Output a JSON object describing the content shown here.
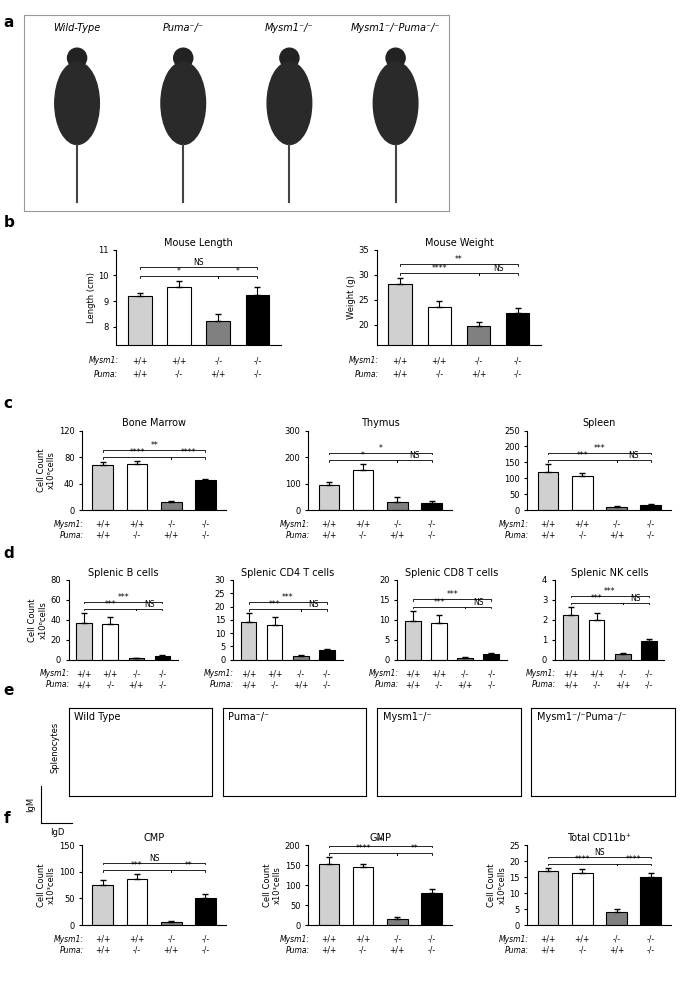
{
  "photo_panel": {
    "panel": "a",
    "labels": [
      "Wild-Type",
      "Puma⁻/⁻",
      "Mysm1⁻/⁻",
      "Mysm1⁻/⁻Puma⁻/⁻"
    ]
  },
  "flow_panel": {
    "panel": "e",
    "titles": [
      "Wild Type",
      "Puma⁻/⁻",
      "Mysm1⁻/⁻",
      "Mysm1⁻/⁻Puma⁻/⁻"
    ],
    "row_label": "Splenocytes",
    "y_label": "IgM",
    "x_label": "IgD"
  },
  "genotype_table": [
    {
      "gene": "Mysm1:",
      "alleles": [
        "+/+",
        "+/+",
        "-/-",
        "-/-"
      ]
    },
    {
      "gene": "Puma:",
      "alleles": [
        "+/+",
        "-/-",
        "+/+",
        "-/-"
      ]
    }
  ],
  "chart_data": [
    {
      "group": "b",
      "type": "bar",
      "title": "Mouse Length",
      "y_label": "Length (cm)",
      "categories": [
        null,
        null,
        null,
        null
      ],
      "values": [
        9.2,
        9.55,
        8.25,
        9.25
      ],
      "errors": [
        0.1,
        0.25,
        0.25,
        0.3
      ],
      "colors": [
        "#d0d0d0",
        "#ffffff",
        "#808080",
        "#000000"
      ],
      "ylim": [
        7.3,
        11
      ],
      "yticks": [
        8,
        9,
        10,
        11
      ],
      "significance": [
        {
          "between": [
            0,
            3
          ],
          "label": "NS"
        },
        {
          "between": [
            0,
            2
          ],
          "label": "*"
        },
        {
          "between": [
            2,
            3
          ],
          "label": "*"
        }
      ]
    },
    {
      "group": "b",
      "type": "bar",
      "title": "Mouse Weight",
      "y_label": "Weight (g)",
      "categories": [
        null,
        null,
        null,
        null
      ],
      "values": [
        28.2,
        23.5,
        19.8,
        22.3
      ],
      "errors": [
        1.2,
        1.3,
        0.8,
        1.1
      ],
      "colors": [
        "#d0d0d0",
        "#ffffff",
        "#808080",
        "#000000"
      ],
      "ylim": [
        16,
        35
      ],
      "yticks": [
        20,
        25,
        30,
        35
      ],
      "significance": [
        {
          "between": [
            0,
            3
          ],
          "label": "**"
        },
        {
          "between": [
            0,
            2
          ],
          "label": "****"
        },
        {
          "between": [
            2,
            3
          ],
          "label": "NS"
        }
      ]
    },
    {
      "group": "c",
      "type": "bar",
      "title": "Bone Marrow",
      "y_label": "Cell Count\nx10⁶cells",
      "categories": [
        null,
        null,
        null,
        null
      ],
      "values": [
        68,
        69,
        12,
        45
      ],
      "errors": [
        4,
        5,
        2,
        2
      ],
      "colors": [
        "#d0d0d0",
        "#ffffff",
        "#808080",
        "#000000"
      ],
      "ylim": [
        0,
        120
      ],
      "yticks": [
        0,
        40,
        80,
        120
      ],
      "significance": [
        {
          "between": [
            0,
            3
          ],
          "label": "**"
        },
        {
          "between": [
            0,
            2
          ],
          "label": "****"
        },
        {
          "between": [
            2,
            3
          ],
          "label": "****"
        }
      ]
    },
    {
      "group": "c",
      "type": "bar",
      "title": "Thymus",
      "categories": [
        null,
        null,
        null,
        null
      ],
      "values": [
        95,
        152,
        32,
        26
      ],
      "errors": [
        12,
        22,
        18,
        8
      ],
      "colors": [
        "#d0d0d0",
        "#ffffff",
        "#808080",
        "#000000"
      ],
      "ylim": [
        0,
        300
      ],
      "yticks": [
        0,
        100,
        200,
        300
      ],
      "significance": [
        {
          "between": [
            0,
            3
          ],
          "label": "*"
        },
        {
          "between": [
            0,
            2
          ],
          "label": "*"
        },
        {
          "between": [
            2,
            3
          ],
          "label": "NS"
        }
      ]
    },
    {
      "group": "c",
      "type": "bar",
      "title": "Spleen",
      "categories": [
        null,
        null,
        null,
        null
      ],
      "values": [
        120,
        108,
        10,
        17
      ],
      "errors": [
        25,
        10,
        4,
        3
      ],
      "colors": [
        "#d0d0d0",
        "#ffffff",
        "#808080",
        "#000000"
      ],
      "ylim": [
        0,
        250
      ],
      "yticks": [
        0,
        50,
        100,
        150,
        200,
        250
      ],
      "significance": [
        {
          "between": [
            0,
            3
          ],
          "label": "***"
        },
        {
          "between": [
            0,
            2
          ],
          "label": "***"
        },
        {
          "between": [
            2,
            3
          ],
          "label": "NS"
        }
      ]
    },
    {
      "group": "d",
      "type": "bar",
      "title": "Splenic B cells",
      "y_label": "Cell Count\nx10⁶cells",
      "categories": [
        null,
        null,
        null,
        null
      ],
      "values": [
        37,
        36,
        1.5,
        3.5
      ],
      "errors": [
        10,
        7,
        0.5,
        1
      ],
      "colors": [
        "#d0d0d0",
        "#ffffff",
        "#808080",
        "#000000"
      ],
      "ylim": [
        0,
        80
      ],
      "yticks": [
        0,
        20,
        40,
        60,
        80
      ],
      "significance": [
        {
          "between": [
            0,
            3
          ],
          "label": "***"
        },
        {
          "between": [
            0,
            2
          ],
          "label": "***"
        },
        {
          "between": [
            2,
            3
          ],
          "label": "NS"
        }
      ]
    },
    {
      "group": "d",
      "type": "bar",
      "title": "Splenic CD4 T cells",
      "categories": [
        null,
        null,
        null,
        null
      ],
      "values": [
        14,
        13.2,
        1.5,
        3.5
      ],
      "errors": [
        3.5,
        2.8,
        0.3,
        0.5
      ],
      "colors": [
        "#d0d0d0",
        "#ffffff",
        "#808080",
        "#000000"
      ],
      "ylim": [
        0,
        30
      ],
      "yticks": [
        0,
        5,
        10,
        15,
        20,
        25,
        30
      ],
      "significance": [
        {
          "between": [
            0,
            3
          ],
          "label": "***"
        },
        {
          "between": [
            0,
            2
          ],
          "label": "***"
        },
        {
          "between": [
            2,
            3
          ],
          "label": "NS"
        }
      ]
    },
    {
      "group": "d",
      "type": "bar",
      "title": "Splenic CD8 T cells",
      "categories": [
        null,
        null,
        null,
        null
      ],
      "values": [
        9.8,
        9.3,
        0.5,
        1.5
      ],
      "errors": [
        2.5,
        2,
        0.1,
        0.2
      ],
      "colors": [
        "#d0d0d0",
        "#ffffff",
        "#808080",
        "#000000"
      ],
      "ylim": [
        0,
        20
      ],
      "yticks": [
        0,
        5,
        10,
        15,
        20
      ],
      "significance": [
        {
          "between": [
            0,
            3
          ],
          "label": "***"
        },
        {
          "between": [
            0,
            2
          ],
          "label": "***"
        },
        {
          "between": [
            2,
            3
          ],
          "label": "NS"
        }
      ]
    },
    {
      "group": "d",
      "type": "bar",
      "title": "Splenic NK cells",
      "categories": [
        null,
        null,
        null,
        null
      ],
      "values": [
        2.25,
        2.0,
        0.3,
        0.95
      ],
      "errors": [
        0.4,
        0.35,
        0.05,
        0.08
      ],
      "colors": [
        "#d0d0d0",
        "#ffffff",
        "#808080",
        "#000000"
      ],
      "ylim": [
        0,
        4
      ],
      "yticks": [
        0,
        1,
        2,
        3,
        4
      ],
      "significance": [
        {
          "between": [
            0,
            3
          ],
          "label": "***"
        },
        {
          "between": [
            0,
            2
          ],
          "label": "***"
        },
        {
          "between": [
            2,
            3
          ],
          "label": "NS"
        }
      ]
    },
    {
      "group": "f",
      "type": "bar",
      "title": "CMP",
      "y_label": "Cell Count\nx10³cells",
      "categories": [
        null,
        null,
        null,
        null
      ],
      "values": [
        76,
        86,
        6,
        50
      ],
      "errors": [
        8,
        10,
        2,
        9
      ],
      "colors": [
        "#d0d0d0",
        "#ffffff",
        "#808080",
        "#000000"
      ],
      "ylim": [
        0,
        150
      ],
      "yticks": [
        0,
        50,
        100,
        150
      ],
      "significance": [
        {
          "between": [
            0,
            3
          ],
          "label": "NS"
        },
        {
          "between": [
            0,
            2
          ],
          "label": "***"
        },
        {
          "between": [
            2,
            3
          ],
          "label": "**"
        }
      ]
    },
    {
      "group": "f",
      "type": "bar",
      "title": "GMP",
      "y_label": "Cell Count\nx10³cells",
      "categories": [
        null,
        null,
        null,
        null
      ],
      "values": [
        153,
        145,
        15,
        80
      ],
      "errors": [
        18,
        8,
        4,
        10
      ],
      "colors": [
        "#d0d0d0",
        "#ffffff",
        "#808080",
        "#000000"
      ],
      "ylim": [
        0,
        200
      ],
      "yticks": [
        0,
        50,
        100,
        150,
        200
      ],
      "significance": [
        {
          "between": [
            0,
            3
          ],
          "label": "**"
        },
        {
          "between": [
            0,
            2
          ],
          "label": "****"
        },
        {
          "between": [
            2,
            3
          ],
          "label": "**"
        }
      ]
    },
    {
      "group": "f",
      "type": "bar",
      "title": "Total CD11b⁺",
      "y_label": "Cell Count\nx10⁶cells",
      "categories": [
        null,
        null,
        null,
        null
      ],
      "values": [
        17,
        16.3,
        4.2,
        15
      ],
      "errors": [
        1,
        1.2,
        0.8,
        1.3
      ],
      "colors": [
        "#d0d0d0",
        "#ffffff",
        "#808080",
        "#000000"
      ],
      "ylim": [
        0,
        25
      ],
      "yticks": [
        0,
        5,
        10,
        15,
        20,
        25
      ],
      "significance": [
        {
          "between": [
            0,
            3
          ],
          "label": "NS"
        },
        {
          "between": [
            0,
            2
          ],
          "label": "****"
        },
        {
          "between": [
            2,
            3
          ],
          "label": "****"
        }
      ]
    }
  ]
}
